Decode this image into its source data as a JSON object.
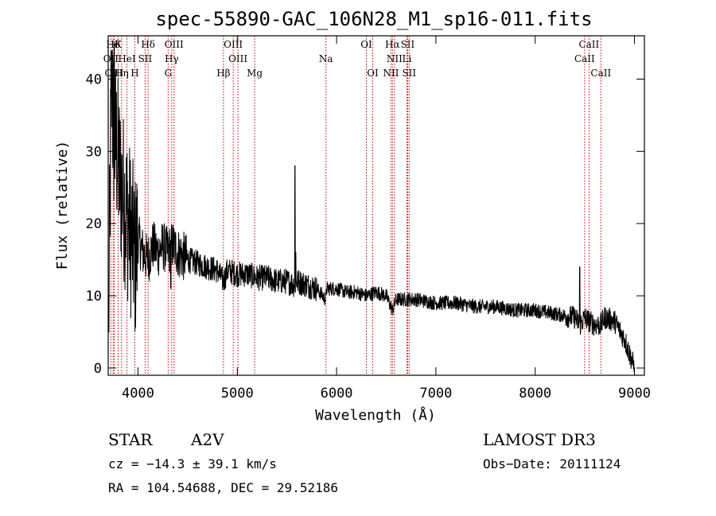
{
  "chart_data": {
    "type": "line",
    "title": "spec-55890-GAC_106N28_M1_sp16-011.fits",
    "xlabel": "Wavelength (Å)",
    "ylabel": "Flux (relative)",
    "xlim": [
      3700,
      9100
    ],
    "ylim": [
      -1,
      46
    ],
    "x_ticks": [
      4000,
      5000,
      6000,
      7000,
      8000,
      9000
    ],
    "y_ticks": [
      0,
      10,
      20,
      30,
      40
    ],
    "grid": false,
    "spectrum_anchors": {
      "x": [
        3700,
        3730,
        3760,
        3790,
        3820,
        3850,
        3880,
        3910,
        3950,
        3970,
        4000,
        4050,
        4100,
        4150,
        4200,
        4250,
        4300,
        4350,
        4400,
        4500,
        4600,
        4700,
        4800,
        4861,
        4900,
        5000,
        5100,
        5200,
        5300,
        5400,
        5500,
        5580,
        5600,
        5700,
        5800,
        5890,
        5900,
        6000,
        6100,
        6200,
        6300,
        6400,
        6500,
        6563,
        6600,
        6700,
        6800,
        7000,
        7200,
        7400,
        7600,
        7800,
        8000,
        8200,
        8400,
        8450,
        8500,
        8540,
        8600,
        8662,
        8700,
        8800,
        8900,
        8950,
        9000
      ],
      "y": [
        0,
        38,
        32,
        30,
        26,
        24,
        22,
        20,
        17,
        15,
        18,
        16,
        15,
        17,
        16,
        17,
        16,
        17,
        16,
        15,
        14.5,
        14,
        13.5,
        12,
        13.5,
        13,
        13,
        12.5,
        12.5,
        12,
        12,
        11.5,
        12,
        11.5,
        11,
        9.5,
        11,
        11,
        10.5,
        10.5,
        10,
        10.5,
        10,
        8,
        9.5,
        9.5,
        9.5,
        9,
        9,
        8.5,
        8.5,
        8,
        8,
        7.5,
        7,
        6,
        7,
        6.5,
        6,
        6,
        7,
        6.5,
        4,
        2,
        0
      ],
      "spikes": [
        [
          5580,
          28
        ],
        [
          5590,
          16
        ],
        [
          8450,
          14
        ],
        [
          4330,
          11
        ],
        [
          3740,
          44
        ],
        [
          3760,
          45
        ]
      ]
    },
    "spectral_lines": [
      {
        "label": "Hδ",
        "wavelength": 3750,
        "row": 1
      },
      {
        "label": "K",
        "wavelength": 3800,
        "row": 1
      },
      {
        "label": "Hδ",
        "wavelength": 4102,
        "row": 1
      },
      {
        "label": "OIII",
        "wavelength": 4363,
        "row": 1
      },
      {
        "label": "OIII",
        "wavelength": 4959,
        "row": 1
      },
      {
        "label": "OI",
        "wavelength": 6300,
        "row": 1
      },
      {
        "label": "Hα",
        "wavelength": 6563,
        "row": 1
      },
      {
        "label": "SII",
        "wavelength": 6716,
        "row": 1
      },
      {
        "label": "CaII",
        "wavelength": 8542,
        "row": 1
      },
      {
        "label": "OII",
        "wavelength": 3727,
        "row": 2
      },
      {
        "label": "HeI",
        "wavelength": 3889,
        "row": 2
      },
      {
        "label": "SII",
        "wavelength": 4072,
        "row": 2
      },
      {
        "label": "Hγ",
        "wavelength": 4340,
        "row": 2
      },
      {
        "label": "OIII",
        "wavelength": 5007,
        "row": 2
      },
      {
        "label": "Na",
        "wavelength": 5893,
        "row": 2
      },
      {
        "label": "NII",
        "wavelength": 6583,
        "row": 2
      },
      {
        "label": "Li",
        "wavelength": 6708,
        "row": 2
      },
      {
        "label": "CaII",
        "wavelength": 8498,
        "row": 2
      },
      {
        "label": "OIII",
        "wavelength": 3760,
        "row": 3
      },
      {
        "label": "Hη",
        "wavelength": 3835,
        "row": 3
      },
      {
        "label": "H",
        "wavelength": 3968,
        "row": 3
      },
      {
        "label": "G",
        "wavelength": 4304,
        "row": 3
      },
      {
        "label": "Hβ",
        "wavelength": 4861,
        "row": 3
      },
      {
        "label": "Mg",
        "wavelength": 5175,
        "row": 3
      },
      {
        "label": "OI",
        "wavelength": 6364,
        "row": 3
      },
      {
        "label": "NII",
        "wavelength": 6548,
        "row": 3
      },
      {
        "label": "SII",
        "wavelength": 6731,
        "row": 3
      },
      {
        "label": "CaII",
        "wavelength": 8662,
        "row": 3
      }
    ]
  },
  "info": {
    "class": "STAR",
    "subclass": "A2V",
    "survey": "LAMOST DR3",
    "cz": "cz = −14.3 ± 39.1 km/s",
    "obs_date": "Obs−Date: 20111124",
    "coords": "RA = 104.54688, DEC =  29.52186"
  },
  "colors": {
    "spectrum": "#000000",
    "lines": "#cc0000",
    "axes": "#000000"
  }
}
